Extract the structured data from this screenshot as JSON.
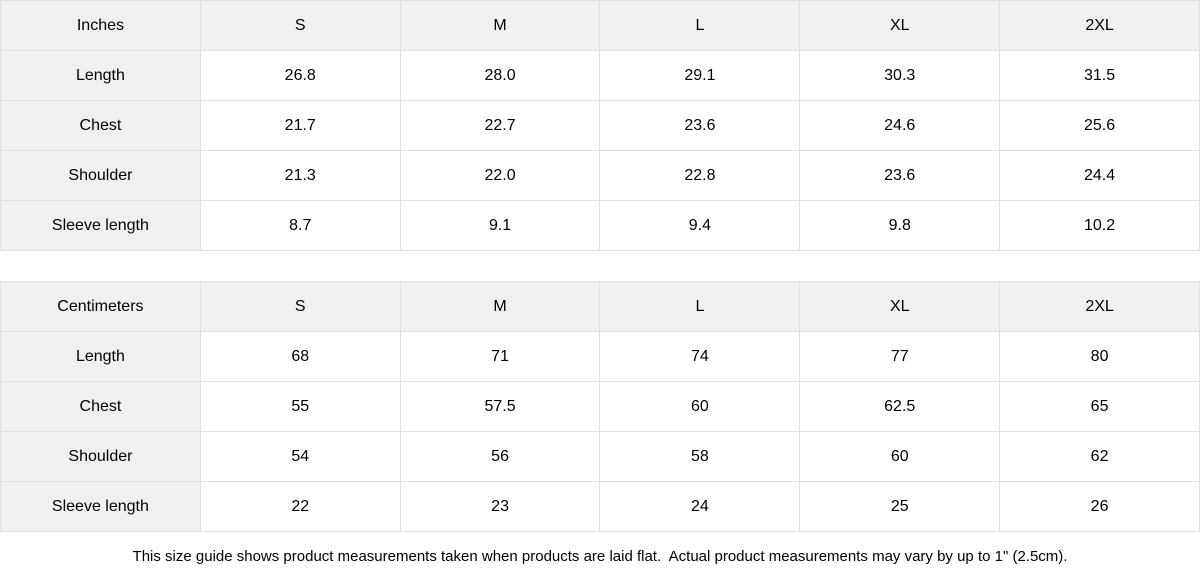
{
  "tables": [
    {
      "unit_label": "Inches",
      "columns": [
        "S",
        "M",
        "L",
        "XL",
        "2XL"
      ],
      "rows": [
        {
          "label": "Length",
          "values": [
            "26.8",
            "28.0",
            "29.1",
            "30.3",
            "31.5"
          ]
        },
        {
          "label": "Chest",
          "values": [
            "21.7",
            "22.7",
            "23.6",
            "24.6",
            "25.6"
          ]
        },
        {
          "label": "Shoulder",
          "values": [
            "21.3",
            "22.0",
            "22.8",
            "23.6",
            "24.4"
          ]
        },
        {
          "label": "Sleeve length",
          "values": [
            "8.7",
            "9.1",
            "9.4",
            "9.8",
            "10.2"
          ]
        }
      ]
    },
    {
      "unit_label": "Centimeters",
      "columns": [
        "S",
        "M",
        "L",
        "XL",
        "2XL"
      ],
      "rows": [
        {
          "label": "Length",
          "values": [
            "68",
            "71",
            "74",
            "77",
            "80"
          ]
        },
        {
          "label": "Chest",
          "values": [
            "55",
            "57.5",
            "60",
            "62.5",
            "65"
          ]
        },
        {
          "label": "Shoulder",
          "values": [
            "54",
            "56",
            "58",
            "60",
            "62"
          ]
        },
        {
          "label": "Sleeve length",
          "values": [
            "22",
            "23",
            "24",
            "25",
            "26"
          ]
        }
      ]
    }
  ],
  "footer": {
    "note": "This size guide shows product measurements taken when products are laid flat.  Actual product measurements may vary by up to 1\" (2.5cm)."
  },
  "colors": {
    "header_bg": "#f0f0f0",
    "border": "#e0e0e0",
    "text": "#000000",
    "page_bg": "#ffffff"
  }
}
